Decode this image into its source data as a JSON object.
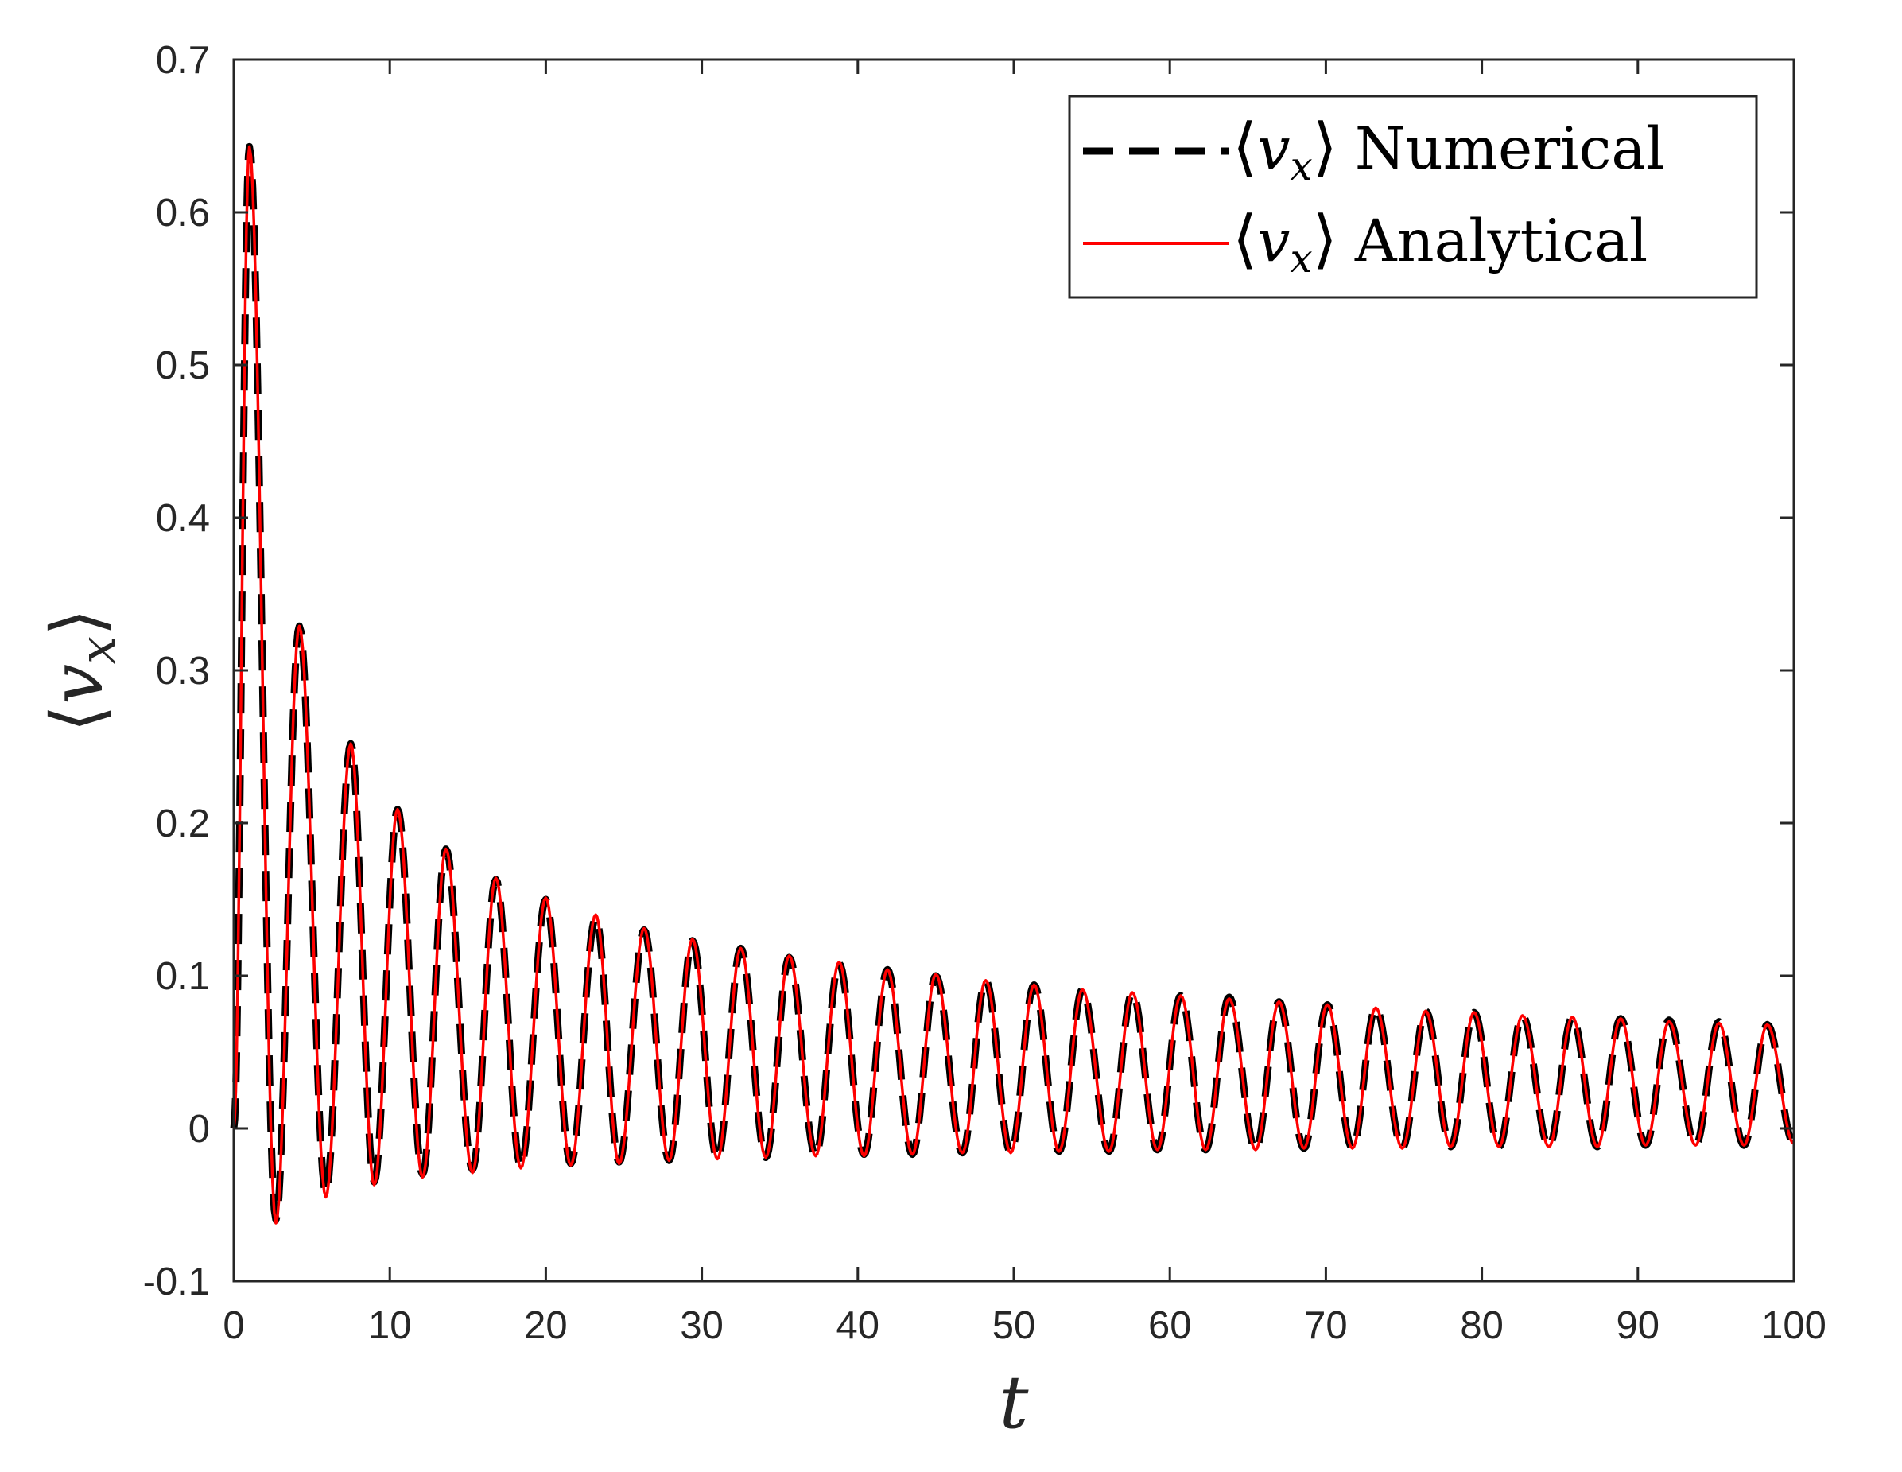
{
  "chart_data": {
    "type": "line",
    "xlabel": "t",
    "ylabel": "⟨vx⟩",
    "ylabel_parts": {
      "bracket_open": "⟨",
      "var": "v",
      "sub": "x",
      "bracket_close": "⟩"
    },
    "xlim": [
      0,
      100
    ],
    "ylim": [
      -0.1,
      0.7
    ],
    "x_ticks": [
      0,
      10,
      20,
      30,
      40,
      50,
      60,
      70,
      80,
      90,
      100
    ],
    "x_tick_labels": [
      "0",
      "10",
      "20",
      "30",
      "40",
      "50",
      "60",
      "70",
      "80",
      "90",
      "100"
    ],
    "y_ticks": [
      -0.1,
      0,
      0.1,
      0.2,
      0.3,
      0.4,
      0.5,
      0.6,
      0.7
    ],
    "y_tick_labels": [
      "-0.1",
      "0",
      "0.1",
      "0.2",
      "0.3",
      "0.4",
      "0.5",
      "0.6",
      "0.7"
    ],
    "grid": false,
    "legend_position": "top-right",
    "series": [
      {
        "name": "⟨vx⟩ Numerical",
        "label_var": "v",
        "label_sub": "x",
        "label_word": "Numerical",
        "color": "#000000",
        "style": "dashed",
        "peaks": [
          [
            1.0,
            0.643
          ],
          [
            4.2,
            0.329
          ],
          [
            7.5,
            0.252
          ],
          [
            10.5,
            0.209
          ],
          [
            13.6,
            0.183
          ],
          [
            16.8,
            0.163
          ],
          [
            20.0,
            0.15
          ],
          [
            23.2,
            0.138
          ],
          [
            26.3,
            0.13
          ],
          [
            29.4,
            0.123
          ],
          [
            32.5,
            0.118
          ],
          [
            35.6,
            0.112
          ],
          [
            38.8,
            0.108
          ],
          [
            41.9,
            0.104
          ],
          [
            45.0,
            0.1
          ],
          [
            48.2,
            0.097
          ],
          [
            51.3,
            0.094
          ],
          [
            54.4,
            0.091
          ],
          [
            57.6,
            0.089
          ],
          [
            60.7,
            0.087
          ],
          [
            63.8,
            0.086
          ],
          [
            67.0,
            0.083
          ],
          [
            70.1,
            0.081
          ],
          [
            73.2,
            0.079
          ],
          [
            76.4,
            0.077
          ],
          [
            79.5,
            0.076
          ],
          [
            82.6,
            0.074
          ],
          [
            85.8,
            0.073
          ],
          [
            88.9,
            0.072
          ],
          [
            92.0,
            0.071
          ],
          [
            95.2,
            0.07
          ],
          [
            98.3,
            0.068
          ]
        ],
        "troughs": [
          [
            2.7,
            -0.06
          ],
          [
            5.9,
            -0.042
          ],
          [
            9.0,
            -0.035
          ],
          [
            12.1,
            -0.03
          ],
          [
            15.3,
            -0.027
          ],
          [
            18.4,
            -0.025
          ],
          [
            21.6,
            -0.023
          ],
          [
            24.7,
            -0.022
          ],
          [
            27.9,
            -0.021
          ],
          [
            31.0,
            -0.02
          ],
          [
            34.1,
            -0.019
          ],
          [
            37.3,
            -0.018
          ],
          [
            40.4,
            -0.017
          ],
          [
            43.5,
            -0.017
          ],
          [
            46.7,
            -0.016
          ],
          [
            49.8,
            -0.016
          ],
          [
            52.9,
            -0.015
          ],
          [
            56.1,
            -0.015
          ],
          [
            59.2,
            -0.014
          ],
          [
            62.3,
            -0.014
          ],
          [
            65.5,
            -0.014
          ],
          [
            68.6,
            -0.013
          ],
          [
            71.7,
            -0.013
          ],
          [
            74.9,
            -0.013
          ],
          [
            78.0,
            -0.012
          ],
          [
            81.1,
            -0.012
          ],
          [
            84.3,
            -0.012
          ],
          [
            87.4,
            -0.012
          ],
          [
            90.5,
            -0.011
          ],
          [
            93.7,
            -0.011
          ],
          [
            96.8,
            -0.011
          ]
        ],
        "end": [
          100,
          -0.01
        ]
      },
      {
        "name": "⟨vx⟩ Analytical",
        "label_var": "v",
        "label_sub": "x",
        "label_word": "Analytical",
        "color": "#ff0000",
        "style": "solid",
        "peaks": [
          [
            1.0,
            0.643
          ],
          [
            4.2,
            0.329
          ],
          [
            7.5,
            0.252
          ],
          [
            10.5,
            0.209
          ],
          [
            13.6,
            0.183
          ],
          [
            16.8,
            0.164
          ],
          [
            20.0,
            0.151
          ],
          [
            23.2,
            0.14
          ],
          [
            26.3,
            0.131
          ],
          [
            29.4,
            0.124
          ],
          [
            32.5,
            0.118
          ],
          [
            35.6,
            0.113
          ],
          [
            38.8,
            0.109
          ],
          [
            41.9,
            0.104
          ],
          [
            45.0,
            0.101
          ],
          [
            48.2,
            0.097
          ],
          [
            51.3,
            0.094
          ],
          [
            54.4,
            0.091
          ],
          [
            57.6,
            0.089
          ],
          [
            60.7,
            0.087
          ],
          [
            63.8,
            0.085
          ],
          [
            67.0,
            0.083
          ],
          [
            70.1,
            0.081
          ],
          [
            73.2,
            0.079
          ],
          [
            76.4,
            0.077
          ],
          [
            79.5,
            0.076
          ],
          [
            82.6,
            0.074
          ],
          [
            85.8,
            0.073
          ],
          [
            88.9,
            0.072
          ],
          [
            92.0,
            0.07
          ],
          [
            95.2,
            0.069
          ],
          [
            98.3,
            0.068
          ]
        ],
        "troughs": [
          [
            2.7,
            -0.062
          ],
          [
            5.9,
            -0.045
          ],
          [
            9.0,
            -0.037
          ],
          [
            12.1,
            -0.032
          ],
          [
            15.3,
            -0.029
          ],
          [
            18.4,
            -0.026
          ],
          [
            21.6,
            -0.024
          ],
          [
            24.7,
            -0.023
          ],
          [
            27.9,
            -0.021
          ],
          [
            31.0,
            -0.02
          ],
          [
            34.1,
            -0.019
          ],
          [
            37.3,
            -0.018
          ],
          [
            40.4,
            -0.018
          ],
          [
            43.5,
            -0.017
          ],
          [
            46.7,
            -0.016
          ],
          [
            49.8,
            -0.016
          ],
          [
            52.9,
            -0.015
          ],
          [
            56.1,
            -0.015
          ],
          [
            59.2,
            -0.014
          ],
          [
            62.3,
            -0.014
          ],
          [
            65.5,
            -0.014
          ],
          [
            68.6,
            -0.013
          ],
          [
            71.7,
            -0.013
          ],
          [
            74.9,
            -0.013
          ],
          [
            78.0,
            -0.012
          ],
          [
            81.1,
            -0.012
          ],
          [
            84.3,
            -0.012
          ],
          [
            87.4,
            -0.012
          ],
          [
            90.5,
            -0.011
          ],
          [
            93.7,
            -0.011
          ],
          [
            96.8,
            -0.011
          ]
        ],
        "end": [
          100,
          -0.01
        ]
      }
    ]
  }
}
